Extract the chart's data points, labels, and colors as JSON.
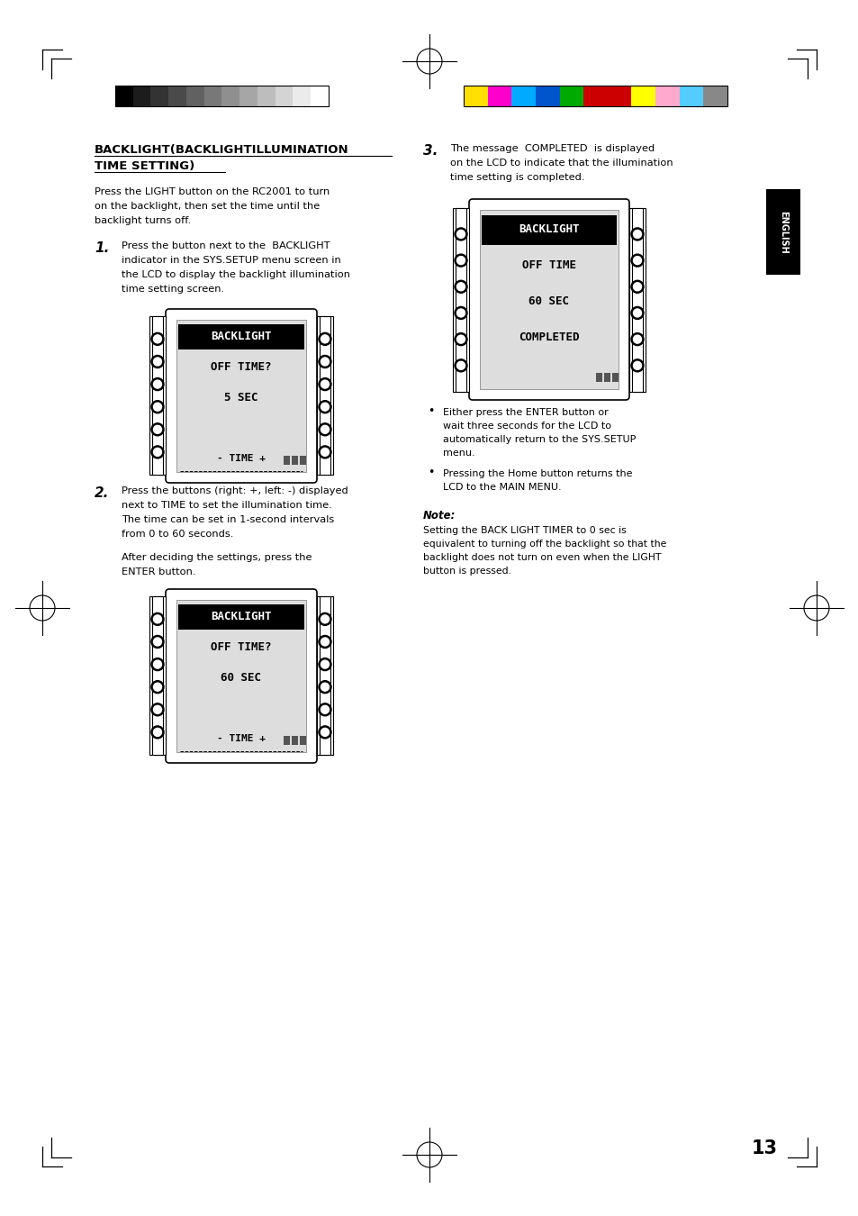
{
  "page_bg": "#ffffff",
  "page_width": 9.54,
  "page_height": 13.5,
  "dpi": 100,
  "grayscale_bar_colors": [
    "#000000",
    "#1c1c1c",
    "#333333",
    "#4a4a4a",
    "#616161",
    "#787878",
    "#8f8f8f",
    "#a6a6a6",
    "#bdbdbd",
    "#d4d4d4",
    "#ebebeb",
    "#ffffff"
  ],
  "color_bar_colors": [
    "#ffe000",
    "#ff00cc",
    "#00aaff",
    "#0055cc",
    "#00aa00",
    "#cc0000",
    "#cc0000",
    "#ffff00",
    "#ffaacc",
    "#55ccff",
    "#888888"
  ],
  "english_tab": "ENGLISH",
  "page_number": "13",
  "lcd1_lines": [
    "BACKLIGHT",
    "OFF TIME?",
    "5 SEC",
    "",
    "- TIME +"
  ],
  "lcd2_lines": [
    "BACKLIGHT",
    "OFF TIME?",
    "60 SEC",
    "",
    "- TIME +"
  ],
  "lcd3_lines": [
    "BACKLIGHT",
    "OFF TIME",
    "60 SEC",
    "COMPLETED",
    ""
  ]
}
